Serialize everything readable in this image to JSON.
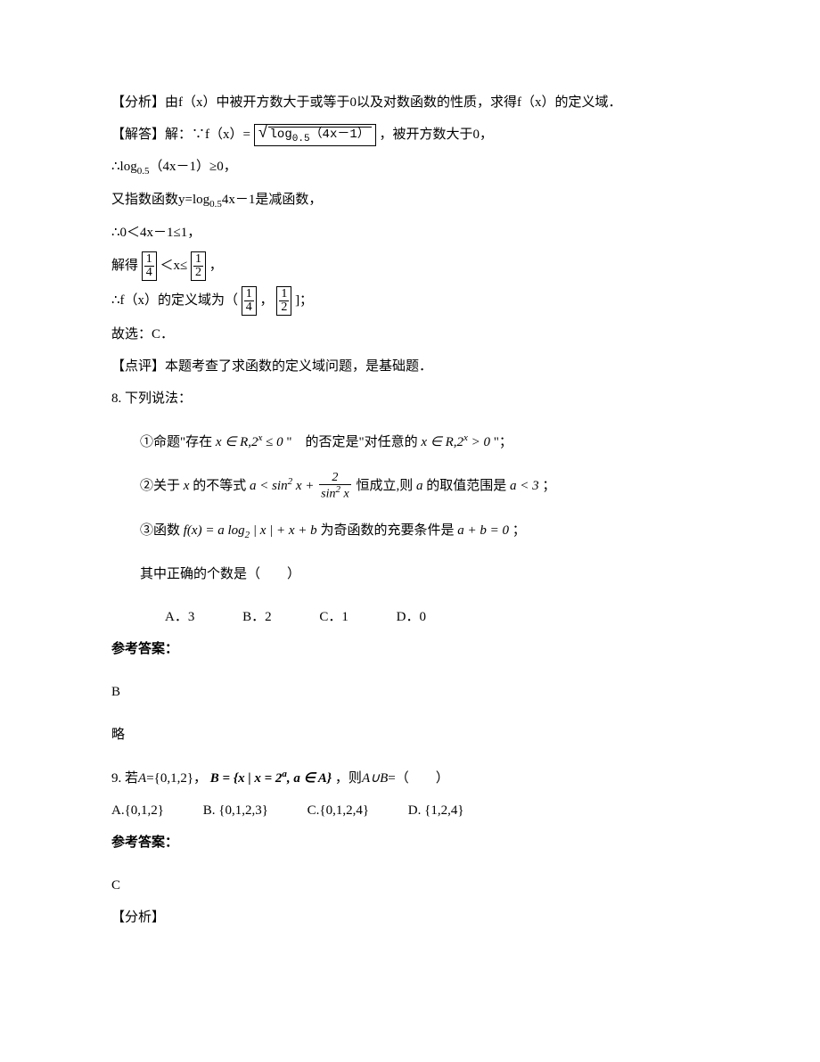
{
  "q7": {
    "analysis": "【分析】由f（x）中被开方数大于或等于0以及对数函数的性质，求得f（x）的定义域．",
    "solve_label": "【解答】解：∵f（x）=",
    "formula_inner": "log",
    "formula_sub": "0.5",
    "formula_arg": "（4x－1）",
    "solve_tail": "，被开方数大于0，",
    "step1": "∴log",
    "step1_sub": "0.5",
    "step1_tail": "（4x－1）≥0，",
    "step2": "又指数函数y=log",
    "step2_sub": "0.5",
    "step2_tail": "4x－1是减函数，",
    "step3": "∴0＜4x－1≤1，",
    "step4_pre": "解得",
    "step4_mid": "＜x≤",
    "step4_end": "，",
    "step5_pre": "∴f（x）的定义域为（",
    "step5_mid": "，",
    "step5_end": "]；",
    "conclusion": "故选：C．",
    "comment": "【点评】本题考查了求函数的定义域问题，是基础题．",
    "frac_1_4_num": "1",
    "frac_1_4_den": "4",
    "frac_1_2_num": "1",
    "frac_1_2_den": "2"
  },
  "q8": {
    "stem": "8. 下列说法：",
    "item1_pre": "①命题\"存在",
    "item1_math1": "x ∈ R,2",
    "item1_math1_sup": "x",
    "item1_math1_tail": " ≤ 0",
    "item1_mid": "\"　的否定是\"对任意的",
    "item1_math2": "x ∈ R,2",
    "item1_math2_sup": "x",
    "item1_math2_tail": " > 0",
    "item1_end": "\"；",
    "item2_pre": "②关于",
    "item2_x": "x",
    "item2_mid1": "的不等式",
    "item2_formula_left": "a < sin",
    "item2_formula_sup2": "2",
    "item2_formula_x": " x + ",
    "item2_frac_num": "2",
    "item2_frac_den_pre": "sin",
    "item2_frac_den_sup": "2",
    "item2_frac_den_x": " x",
    "item2_mid2": "恒成立,则",
    "item2_a": "a",
    "item2_mid3": "的取值范围是",
    "item2_result": "a < 3",
    "item2_end": "；",
    "item3_pre": "③函数",
    "item3_fx": "f(x) = a log",
    "item3_sub2": "2",
    "item3_fx_tail": " | x | + x + b",
    "item3_mid": "为奇函数的充要条件是",
    "item3_cond": "a + b = 0",
    "item3_end": "；",
    "prompt": "其中正确的个数是（　　）",
    "optA": "A．3",
    "optB": "B．2",
    "optC": "C．1",
    "optD": "D．0",
    "answer_label": "参考答案：",
    "answer": "B",
    "brief": "略"
  },
  "q9": {
    "stem_pre": "9. 若",
    "stem_A": "A",
    "stem_eq1": "={0,1,2}，",
    "stem_B_def": "B = {x | x = 2",
    "stem_B_sup": "a",
    "stem_B_tail": ", a ∈ A}",
    "stem_mid": "，则",
    "stem_union": "A∪B",
    "stem_end": "=（　　）",
    "optA": "A.{0,1,2}",
    "optB": "B. {0,1,2,3}",
    "optC": "C.{0,1,2,4}",
    "optD": "D. {1,2,4}",
    "answer_label": "参考答案：",
    "answer": "C",
    "analysis": "【分析】"
  }
}
